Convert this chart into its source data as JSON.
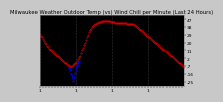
{
  "title": "Milwaukee Weather Outdoor Temp (vs) Wind Chill per Minute (Last 24 Hours)",
  "bg_color": "#c8c8c8",
  "plot_bg_color": "#000000",
  "grid_color": "#606060",
  "red_color": "#ff0000",
  "blue_color": "#0000ff",
  "ytick_labels": [
    "47",
    "38",
    "29",
    "20",
    "11",
    "2",
    "-7",
    "-16",
    "-25"
  ],
  "ytick_values": [
    47,
    38,
    29,
    20,
    11,
    2,
    -7,
    -16,
    -25
  ],
  "ylim": [
    -30,
    52
  ],
  "xlim_max": 143,
  "n_points": 144,
  "temp_curve": [
    30,
    28,
    26,
    24,
    22,
    20,
    18,
    16,
    15,
    13,
    12,
    11,
    10,
    9,
    8,
    7,
    6,
    5,
    4,
    3,
    2,
    1,
    0,
    -1,
    -2,
    -3,
    -4,
    -5,
    -6,
    -7,
    -7,
    -8,
    -7,
    -6,
    -5,
    -4,
    -3,
    -1,
    1,
    3,
    5,
    8,
    11,
    14,
    17,
    20,
    23,
    26,
    29,
    32,
    34,
    36,
    38,
    39,
    40,
    41,
    42,
    43,
    43,
    44,
    44,
    44,
    45,
    45,
    45,
    45,
    45,
    45,
    45,
    45,
    45,
    44,
    44,
    44,
    44,
    43,
    43,
    43,
    43,
    43,
    43,
    43,
    43,
    43,
    43,
    43,
    43,
    42,
    42,
    42,
    42,
    42,
    41,
    41,
    40,
    40,
    39,
    38,
    37,
    36,
    35,
    34,
    33,
    32,
    31,
    30,
    29,
    28,
    27,
    26,
    25,
    24,
    23,
    22,
    21,
    20,
    19,
    18,
    17,
    16,
    15,
    14,
    13,
    12,
    11,
    10,
    9,
    8,
    7,
    6,
    5,
    4,
    3,
    2,
    1,
    0,
    -1,
    -2,
    -3,
    -4,
    -5,
    -6,
    -7,
    -8
  ],
  "windchill_curve_diverge": {
    "start": 29,
    "end": 40,
    "values": [
      -9,
      -12,
      -16,
      -20,
      -24,
      -20,
      -15,
      -10,
      -7,
      -4,
      -2
    ]
  },
  "vline_positions": [
    0,
    36,
    72,
    108
  ],
  "n_xticks": 48,
  "markersize": 0.7,
  "title_fontsize": 3.8,
  "tick_fontsize": 3.2,
  "linewidth": 0.3
}
